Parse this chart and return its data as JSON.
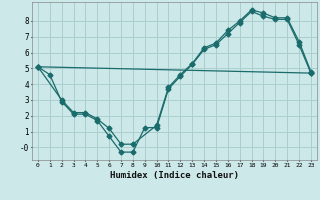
{
  "xlabel": "Humidex (Indice chaleur)",
  "background_color": "#cce8e8",
  "grid_color": "#aacfcf",
  "line_color": "#1a6b6b",
  "x_ticks": [
    0,
    1,
    2,
    3,
    4,
    5,
    6,
    7,
    8,
    9,
    10,
    11,
    12,
    13,
    14,
    15,
    16,
    17,
    18,
    19,
    20,
    21,
    22,
    23
  ],
  "yticks": [
    0,
    1,
    2,
    3,
    4,
    5,
    6,
    7,
    8
  ],
  "ylim": [
    -0.8,
    9.2
  ],
  "xlim": [
    -0.5,
    23.5
  ],
  "line1_x": [
    0,
    1,
    2,
    3,
    4,
    5,
    6,
    7,
    8,
    9,
    10,
    11,
    12,
    13,
    14,
    15,
    16,
    17,
    18,
    19,
    20,
    21,
    22,
    23
  ],
  "line1_y": [
    5.1,
    4.6,
    2.9,
    2.1,
    2.1,
    1.7,
    0.7,
    -0.3,
    -0.3,
    1.25,
    1.25,
    3.7,
    4.5,
    5.25,
    6.2,
    6.5,
    7.2,
    7.9,
    8.6,
    8.3,
    8.1,
    8.1,
    6.5,
    4.7
  ],
  "line2_x": [
    0,
    2,
    3,
    4,
    5,
    6,
    7,
    8,
    10,
    11,
    12,
    13,
    14,
    15,
    16,
    17,
    18,
    19,
    20,
    21,
    22,
    23
  ],
  "line2_y": [
    5.1,
    3.0,
    2.2,
    2.2,
    1.8,
    1.2,
    0.2,
    0.2,
    1.4,
    3.8,
    4.6,
    5.3,
    6.3,
    6.6,
    7.4,
    8.0,
    8.7,
    8.5,
    8.2,
    8.2,
    6.7,
    4.8
  ],
  "line3_x": [
    0,
    23
  ],
  "line3_y": [
    5.1,
    4.7
  ]
}
